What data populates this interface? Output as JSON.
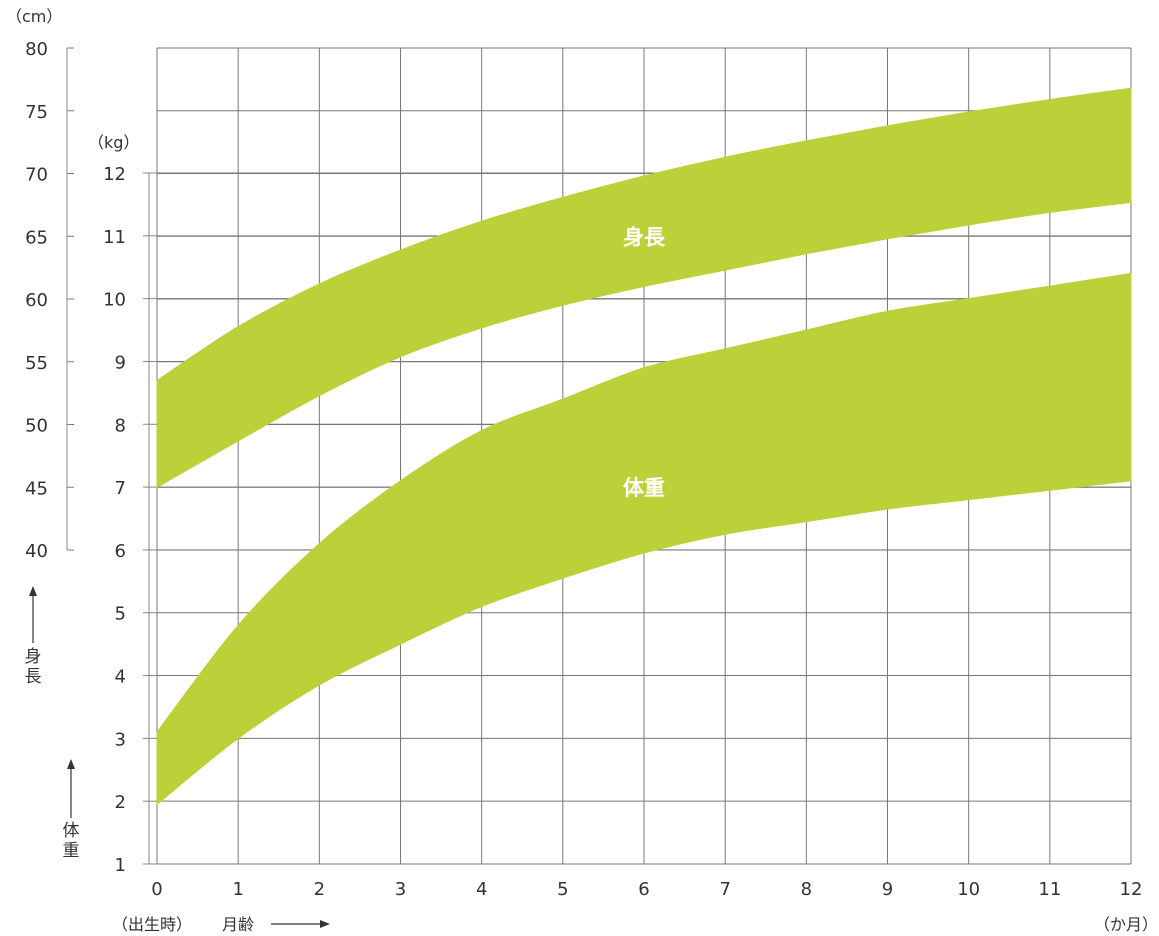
{
  "chart_data": {
    "type": "area",
    "title": "",
    "x": [
      0,
      1,
      2,
      3,
      4,
      5,
      6,
      7,
      8,
      9,
      10,
      11,
      12
    ],
    "xlim": [
      0,
      12
    ],
    "x_ticks": [
      "0",
      "1",
      "2",
      "3",
      "4",
      "5",
      "6",
      "7",
      "8",
      "9",
      "10",
      "11",
      "12"
    ],
    "x_label_left": "（出生時）",
    "x_label": "月齢",
    "x_unit": "（か月）",
    "y_left": {
      "unit": "（cm）",
      "ticks": [
        "40",
        "45",
        "50",
        "55",
        "60",
        "65",
        "70",
        "75",
        "80"
      ],
      "lim": [
        40,
        80
      ],
      "label": "身長"
    },
    "y_right": {
      "unit": "（kg）",
      "ticks": [
        "1",
        "2",
        "3",
        "4",
        "5",
        "6",
        "7",
        "8",
        "9",
        "10",
        "11",
        "12"
      ],
      "lim": [
        1,
        12
      ],
      "label": "体重"
    },
    "grid": true,
    "band_color": "#bcd03a",
    "grid_color": "#777777",
    "series": [
      {
        "name": "身長",
        "axis": "cm",
        "upper": [
          53.5,
          57.8,
          61.2,
          63.9,
          66.2,
          68.1,
          69.8,
          71.3,
          72.6,
          73.8,
          74.9,
          75.9,
          76.8
        ],
        "lower": [
          45.0,
          48.7,
          52.3,
          55.4,
          57.7,
          59.5,
          61.0,
          62.3,
          63.6,
          64.8,
          65.9,
          66.9,
          67.7
        ]
      },
      {
        "name": "体重",
        "axis": "kg",
        "upper": [
          3.1,
          4.8,
          6.1,
          7.1,
          7.9,
          8.4,
          8.9,
          9.2,
          9.5,
          9.8,
          10.0,
          10.2,
          10.4
        ],
        "lower": [
          1.95,
          3.0,
          3.85,
          4.5,
          5.1,
          5.55,
          5.95,
          6.25,
          6.45,
          6.65,
          6.8,
          6.95,
          7.1
        ]
      }
    ]
  }
}
